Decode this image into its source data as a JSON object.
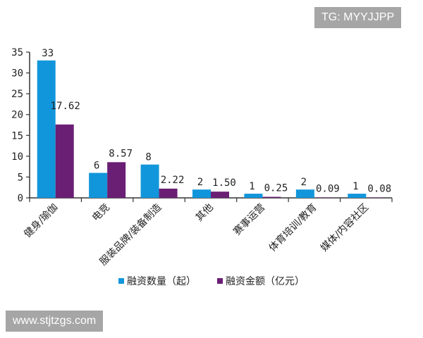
{
  "watermarks": {
    "top": "TG: MYYJJPP",
    "bottom": "www.stjtzgs.com"
  },
  "colors": {
    "series1": "#1296DB",
    "series2": "#6A1F74",
    "axis": "#333333"
  },
  "chart_data": {
    "type": "bar",
    "categories": [
      "健身/瑜伽",
      "电竞",
      "服装品牌/装备制造",
      "其他",
      "赛事运营",
      "体育培训/教育",
      "媒体/内容社区"
    ],
    "series": [
      {
        "name": "融资数量（起）",
        "values": [
          33,
          6,
          8,
          2,
          1,
          2,
          1
        ],
        "labels": [
          "33",
          "6",
          "8",
          "2",
          "1",
          "2",
          "1"
        ]
      },
      {
        "name": "融资金额（亿元）",
        "values": [
          17.62,
          8.57,
          2.22,
          1.5,
          0.25,
          0.09,
          0.08
        ],
        "labels": [
          "17.62",
          "8.57",
          "2.22",
          "1.50",
          "0.25",
          "0.09",
          "0.08"
        ]
      }
    ],
    "ylim": [
      0,
      35
    ],
    "yticks": [
      "0",
      "5",
      "10",
      "15",
      "20",
      "25",
      "30",
      "35"
    ],
    "legend_position": "bottom",
    "grid": false
  }
}
